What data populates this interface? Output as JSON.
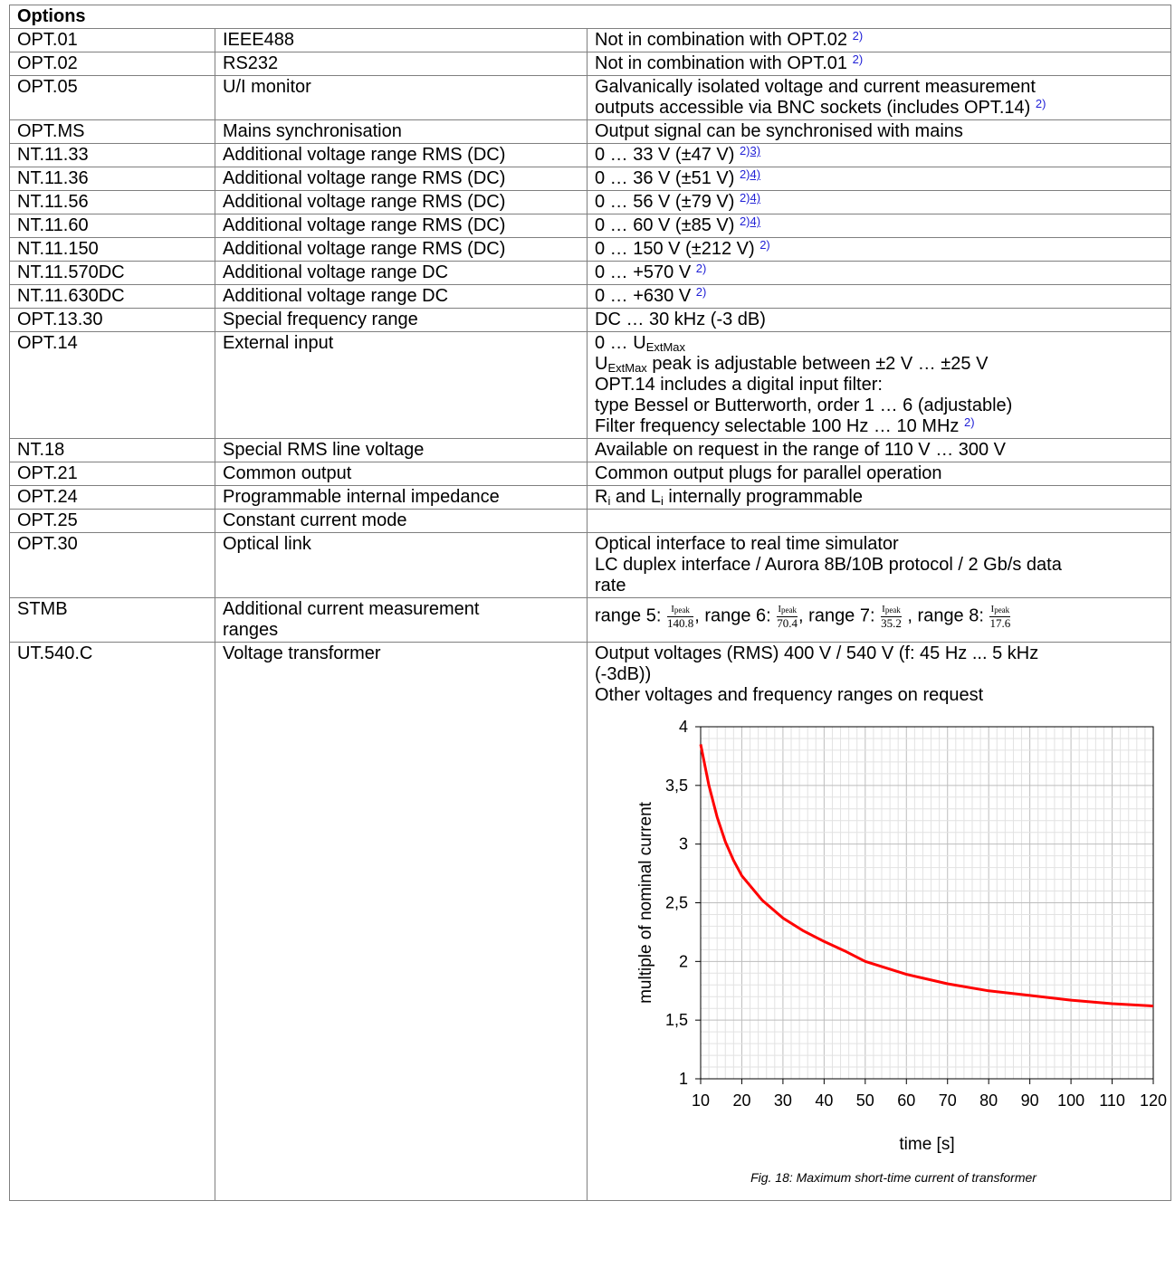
{
  "table": {
    "title": "Options",
    "rows": [
      {
        "code": "OPT.01",
        "name": "IEEE488",
        "desc": "Not in combination with OPT.02",
        "fn": "2)"
      },
      {
        "code": "OPT.02",
        "name": "RS232",
        "desc": "Not in combination with OPT.01",
        "fn": "2)"
      },
      {
        "code": "OPT.05",
        "name": "U/I monitor",
        "desc1": "Galvanically isolated voltage and current measurement",
        "desc2": "outputs accessible via BNC sockets (includes OPT.14)",
        "fn": "2)"
      },
      {
        "code": "OPT.MS",
        "name": "Mains synchronisation",
        "desc": "Output signal can be synchronised with mains"
      },
      {
        "code": "NT.11.33",
        "name": "Additional voltage range RMS (DC)",
        "desc": "0 … 33 V (±47 V)",
        "fn": "2)",
        "fn2": "3)"
      },
      {
        "code": "NT.11.36",
        "name": "Additional voltage range RMS (DC)",
        "desc": "0 … 36 V (±51 V)",
        "fn": "2)",
        "fn2": "4)"
      },
      {
        "code": "NT.11.56",
        "name": "Additional voltage range RMS (DC)",
        "desc": "0 … 56 V (±79 V)",
        "fn": "2)",
        "fn2": "4)"
      },
      {
        "code": "NT.11.60",
        "name": "Additional voltage range RMS (DC)",
        "desc": "0 … 60 V (±85 V)",
        "fn": "2)",
        "fn2": "4)"
      },
      {
        "code": "NT.11.150",
        "name": "Additional voltage range RMS (DC)",
        "desc": "0 … 150 V (±212 V)",
        "fn": "2)"
      },
      {
        "code": "NT.11.570DC",
        "name": "Additional voltage range DC",
        "desc": "0 … +570 V",
        "fn": "2)"
      },
      {
        "code": "NT.11.630DC",
        "name": "Additional voltage range DC",
        "desc": "0 … +630 V",
        "fn": "2)"
      },
      {
        "code": "OPT.13.30",
        "name": "Special frequency range",
        "desc": "DC … 30 kHz (-3 dB)"
      },
      {
        "code": "OPT.14",
        "name": "External input",
        "l1a": "0 … U",
        "l1sub": "ExtMax",
        "l2a": "U",
        "l2sub": "ExtMax",
        "l2b": " peak is adjustable between ±2 V … ±25 V",
        "l3": "OPT.14 includes a digital input filter:",
        "l4": "type Bessel or Butterworth, order 1 … 6 (adjustable)",
        "l5": "Filter frequency selectable 100 Hz … 10 MHz",
        "fn": "2)"
      },
      {
        "code": "NT.18",
        "name": "Special RMS line voltage",
        "desc": "Available on request in the range of 110 V … 300 V"
      },
      {
        "code": "OPT.21",
        "name": "Common output",
        "desc": "Common output plugs for parallel operation"
      },
      {
        "code": "OPT.24",
        "name": "Programmable internal impedance",
        "r": "R",
        "rsub": "i",
        "mid": " and L",
        "lsub": "i",
        "rest": " internally programmable"
      },
      {
        "code": "OPT.25",
        "name": "Constant current mode",
        "desc": ""
      },
      {
        "code": "OPT.30",
        "name": "Optical link",
        "desc1": "Optical interface to real time simulator",
        "desc2": "LC duplex interface / Aurora 8B/10B protocol / 2 Gb/s data",
        "desc3": "rate"
      },
      {
        "code": "STMB",
        "name1": "Additional current measurement",
        "name2": "ranges",
        "ranges": [
          {
            "label": "range 5: ",
            "num": "I",
            "numsub": "peak",
            "den": "140.8",
            "sep": ", "
          },
          {
            "label": "range 6: ",
            "num": "I",
            "numsub": "peak",
            "den": "70.4",
            "sep": ", "
          },
          {
            "label": "range 7: ",
            "num": "I",
            "numsub": "peak",
            "den": "35.2",
            "sep": " , "
          },
          {
            "label": "range 8: ",
            "num": "I",
            "numsub": "peak",
            "den": "17.6",
            "sep": ""
          }
        ]
      },
      {
        "code": "UT.540.C",
        "name": "Voltage transformer",
        "desc1": "Output voltages (RMS) 400 V / 540 V (f: 45 Hz ... 5 kHz",
        "desc2": "(-3dB))",
        "desc3": "Other voltages and frequency ranges on request",
        "caption": "Fig. 18: Maximum short-time current of transformer"
      }
    ]
  },
  "chart_data": {
    "type": "line",
    "title": "",
    "xlabel": "time [s]",
    "ylabel": "multiple of nominal current",
    "xlim": [
      10,
      120
    ],
    "ylim": [
      1,
      4
    ],
    "xticks": [
      "10",
      "20",
      "30",
      "40",
      "50",
      "60",
      "70",
      "80",
      "90",
      "100",
      "110",
      "120"
    ],
    "yticks": [
      "1",
      "1,5",
      "2",
      "2,5",
      "3",
      "3,5",
      "4"
    ],
    "grid": true,
    "line_color": "#ff0000",
    "series": [
      {
        "x": [
          10,
          12,
          14,
          16,
          18,
          20,
          25,
          30,
          35,
          40,
          45,
          50,
          60,
          70,
          80,
          90,
          100,
          110,
          120
        ],
        "values": [
          3.85,
          3.5,
          3.23,
          3.02,
          2.86,
          2.73,
          2.52,
          2.37,
          2.26,
          2.17,
          2.09,
          2.0,
          1.89,
          1.81,
          1.75,
          1.71,
          1.67,
          1.64,
          1.62
        ]
      }
    ]
  }
}
